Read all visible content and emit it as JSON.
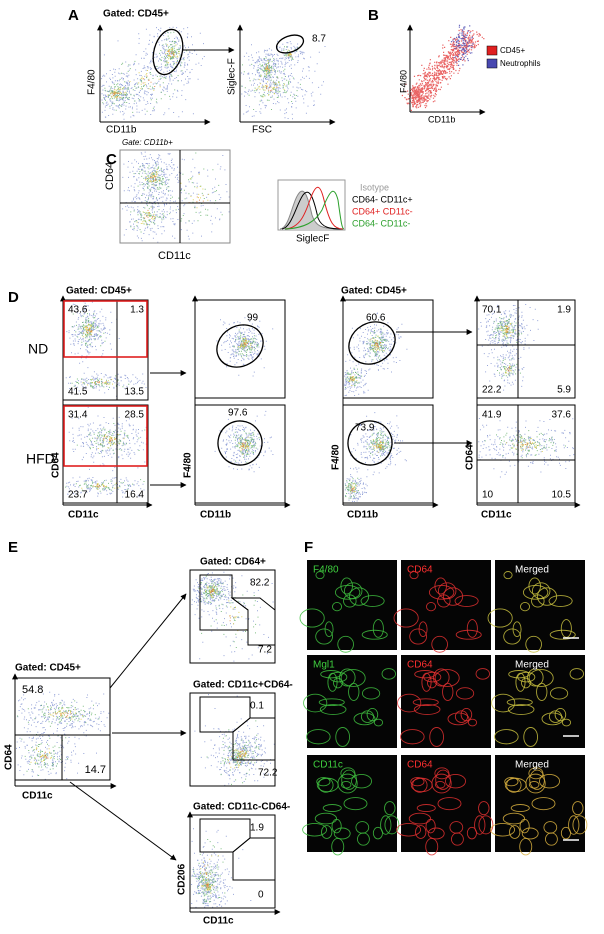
{
  "figure": {
    "panel_labels": [
      "A",
      "B",
      "C",
      "D",
      "E",
      "F"
    ],
    "panel_a": {
      "title": "Gated: CD45+",
      "plot_1": {
        "y_label": "F4/80",
        "x_label": "CD11b"
      },
      "plot_2": {
        "y_label": "Siglec-F",
        "x_label": "FSC",
        "gate_value": "8.7"
      }
    },
    "panel_b": {
      "y_label": "F4/80",
      "x_label": "CD11b",
      "legend": [
        "CD45+",
        "Neutrophils"
      ]
    },
    "panel_c": {
      "title": "Gate: CD11b+",
      "y_label": "CD64",
      "x_label": "CD11c",
      "histogram_x_label": "SiglecF",
      "legend": [
        "Isotype",
        "CD64- CD11c+",
        "CD64+ CD11c-",
        "CD64- CD11c-"
      ]
    },
    "panel_d": {
      "row_labels": [
        "ND",
        "HFD"
      ],
      "left": {
        "title": "Gated: CD45+",
        "quadrant_y_label": "CD64",
        "quadrant_x_label": "CD11c",
        "quadrants_nd": [
          "43.6",
          "1.3",
          "41.5",
          "13.5"
        ],
        "quadrants_hfd": [
          "31.4",
          "28.5",
          "23.7",
          "16.4"
        ],
        "gate_y_label": "F4/80",
        "gate_x_label": "CD11b",
        "gate_nd": "99",
        "gate_hfd": "97.6"
      },
      "right": {
        "title": "Gated: CD45+",
        "gate_y_label": "F4/80",
        "gate_x_label": "CD11b",
        "gate_nd": "60.6",
        "gate_hfd": "73.9",
        "quadrant_y_label": "CD64",
        "quadrant_x_label": "CD11c",
        "quadrants_nd": [
          "70.1",
          "1.9",
          "22.2",
          "5.9"
        ],
        "quadrants_hfd": [
          "41.9",
          "37.6",
          "10",
          "10.5"
        ]
      }
    },
    "panel_e": {
      "main": {
        "title": "Gated: CD45+",
        "y_label": "CD64",
        "x_label": "CD11c",
        "upper": "54.8",
        "lower_right": "14.7"
      },
      "subplots": [
        {
          "title": "Gated: CD64+",
          "upper": "82.2",
          "lower": "7.2"
        },
        {
          "title": "Gated: CD11c+CD64-",
          "upper": "0.1",
          "lower": "72.2"
        },
        {
          "title": "Gated: CD11c-CD64-",
          "upper": "1.9",
          "lower": "0"
        }
      ],
      "sub_y_label": "CD206",
      "sub_x_label": "CD11c"
    },
    "panel_f": {
      "rows": [
        [
          "F4/80",
          "CD64",
          "Merged"
        ],
        [
          "Mgl1",
          "CD64",
          "Merged"
        ],
        [
          "CD11c",
          "CD64",
          "Merged"
        ]
      ]
    }
  }
}
